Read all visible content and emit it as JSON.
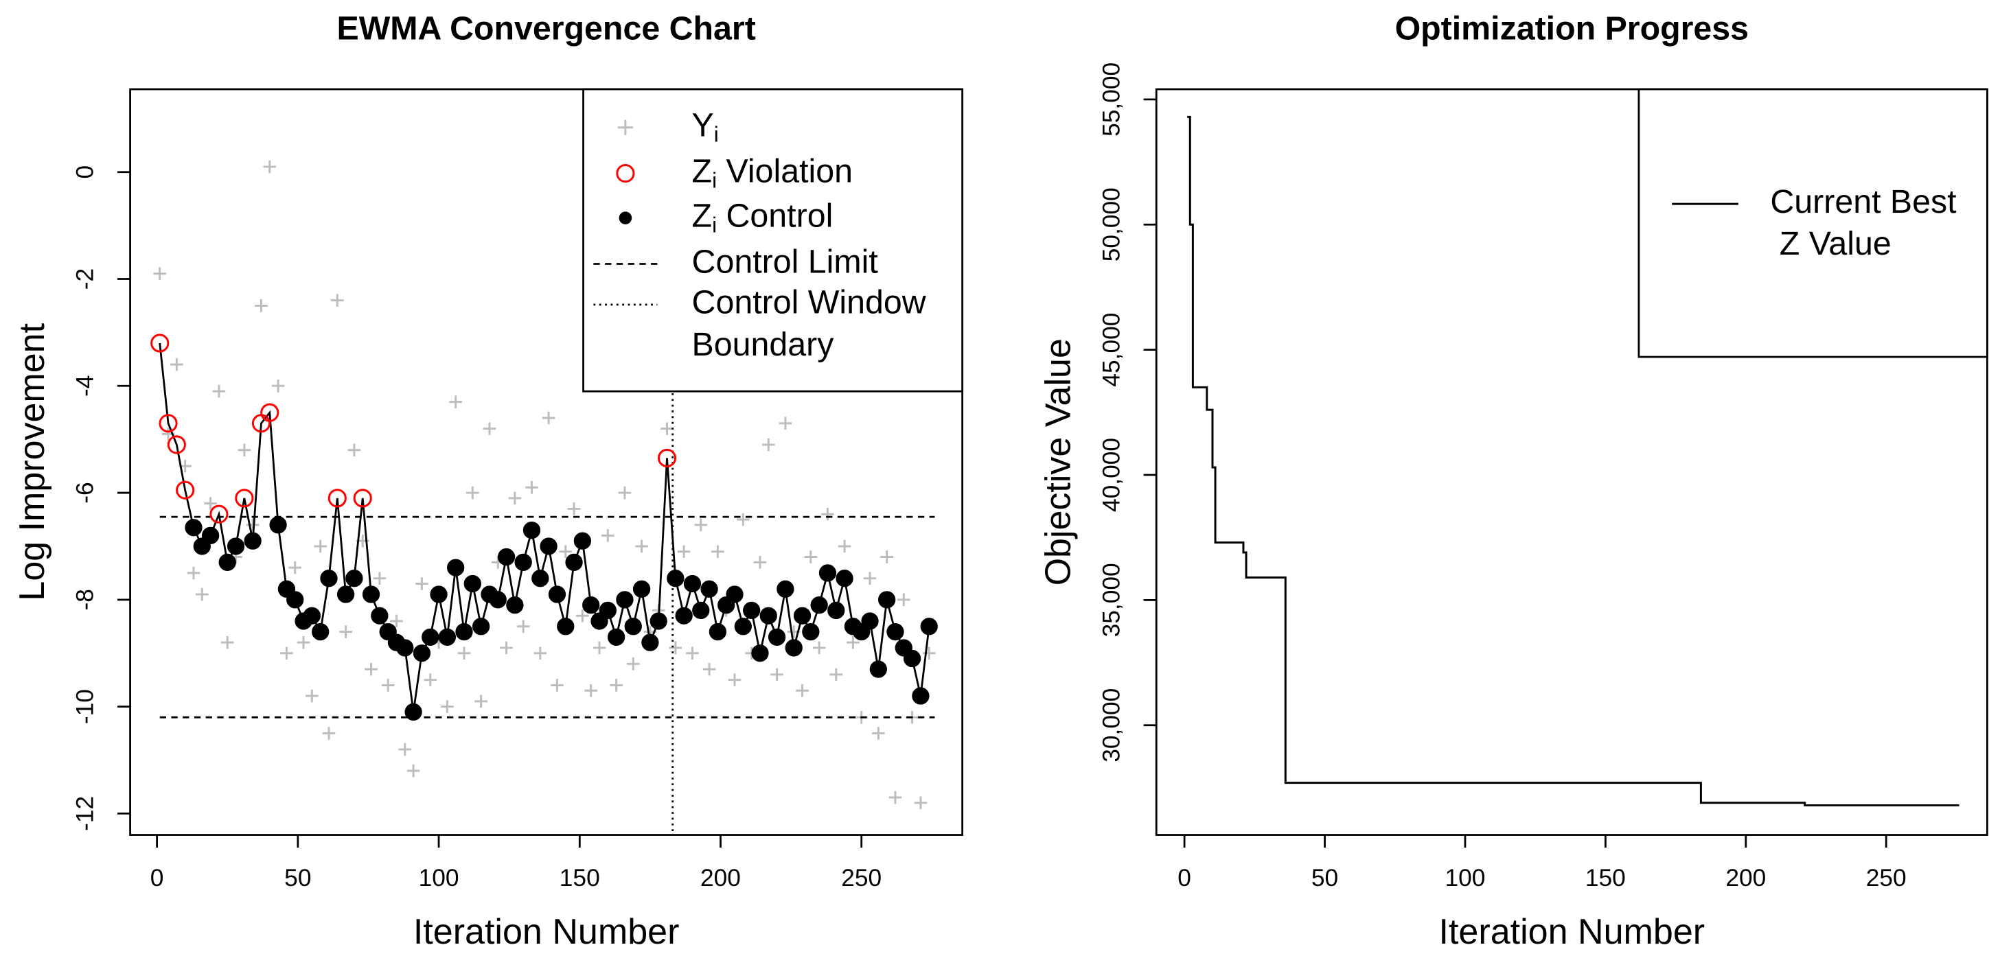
{
  "chart_data": [
    {
      "type": "ewma",
      "title": "EWMA Convergence Chart",
      "xlabel": "Iteration Number",
      "ylabel": "Log Improvement",
      "xlim": [
        -9.5,
        285.8
      ],
      "ylim": [
        -12.4,
        1.55
      ],
      "xticks": [
        0,
        50,
        100,
        150,
        200,
        250
      ],
      "yticks": [
        0,
        -2,
        -4,
        -6,
        -8,
        -10,
        -12
      ],
      "x": [
        1,
        4,
        7,
        10,
        13,
        16,
        19,
        22,
        25,
        28,
        31,
        34,
        37,
        40,
        43,
        46,
        49,
        52,
        55,
        58,
        61,
        64,
        67,
        70,
        73,
        76,
        79,
        82,
        85,
        88,
        91,
        94,
        97,
        100,
        103,
        106,
        109,
        112,
        115,
        118,
        121,
        124,
        127,
        130,
        133,
        136,
        139,
        142,
        145,
        148,
        151,
        154,
        157,
        160,
        163,
        166,
        169,
        172,
        175,
        178,
        181,
        184,
        187,
        190,
        193,
        196,
        199,
        202,
        205,
        208,
        211,
        214,
        217,
        220,
        223,
        226,
        229,
        232,
        235,
        238,
        241,
        244,
        247,
        250,
        253,
        256,
        259,
        262,
        265,
        268,
        271,
        274
      ],
      "observations": {
        "color": "#bdbdbd",
        "values": [
          -1.9,
          -4.9,
          -3.6,
          -5.5,
          -7.5,
          -7.9,
          -6.2,
          -4.1,
          -8.8,
          -7.2,
          -5.2,
          -6.6,
          -2.5,
          0.1,
          -4.0,
          -9.0,
          -7.4,
          -8.8,
          -9.8,
          -7.0,
          -10.5,
          -2.4,
          -8.6,
          -5.2,
          -6.9,
          -9.3,
          -7.6,
          -9.6,
          -8.4,
          -10.8,
          -11.2,
          -7.7,
          -9.5,
          -8.8,
          -10.0,
          -4.3,
          -9.0,
          -6.0,
          -9.9,
          -4.8,
          -7.3,
          -8.9,
          -6.1,
          -8.5,
          -5.9,
          -9.0,
          -4.6,
          -9.6,
          -7.1,
          -6.3,
          -8.3,
          -9.7,
          -8.9,
          -6.8,
          -9.6,
          -6.0,
          -9.2,
          -7.0,
          -8.6,
          -8.2,
          -4.8,
          -8.9,
          -7.1,
          -9.0,
          -6.6,
          -9.3,
          -7.1,
          -8.2,
          -9.5,
          -6.5,
          -9.0,
          -7.3,
          -5.1,
          -9.4,
          -4.7,
          -8.6,
          -9.7,
          -7.2,
          -8.9,
          -6.4,
          -9.4,
          -7.0,
          -8.8,
          -10.2,
          -7.6,
          -10.5,
          -7.2,
          -11.7,
          -8.0,
          -10.2,
          -11.8,
          -9.0
        ]
      },
      "ewma": {
        "color": "#000000",
        "violation_color": "#ff0000",
        "values": [
          -3.2,
          -4.7,
          -5.1,
          -5.95,
          -6.65,
          -7.0,
          -6.8,
          -6.4,
          -7.3,
          -7.0,
          -6.1,
          -6.9,
          -4.7,
          -4.5,
          -6.6,
          -7.8,
          -8.0,
          -8.4,
          -8.3,
          -8.6,
          -7.6,
          -6.1,
          -7.9,
          -7.6,
          -6.1,
          -7.9,
          -8.3,
          -8.6,
          -8.8,
          -8.9,
          -10.1,
          -9.0,
          -8.7,
          -7.9,
          -8.7,
          -7.4,
          -8.6,
          -7.7,
          -8.5,
          -7.9,
          -8.0,
          -7.2,
          -8.1,
          -7.3,
          -6.7,
          -7.6,
          -7.0,
          -7.9,
          -8.5,
          -7.3,
          -6.9,
          -8.1,
          -8.4,
          -8.2,
          -8.7,
          -8.0,
          -8.5,
          -7.8,
          -8.8,
          -8.4,
          -5.35,
          -7.6,
          -8.3,
          -7.7,
          -8.2,
          -7.8,
          -8.6,
          -8.1,
          -7.9,
          -8.5,
          -8.2,
          -9.0,
          -8.3,
          -8.7,
          -7.8,
          -8.9,
          -8.3,
          -8.6,
          -8.1,
          -7.5,
          -8.2,
          -7.6,
          -8.5,
          -8.6,
          -8.4,
          -9.3,
          -8.0,
          -8.6,
          -8.9,
          -9.1,
          -9.8,
          -8.5
        ]
      },
      "control_limit": {
        "upper": -6.45,
        "lower": -10.2,
        "x": [
          1,
          276
        ]
      },
      "window_boundary": 183,
      "legend": [
        {
          "text": "Y",
          "sub": "i",
          "symbol": "plus"
        },
        {
          "text": "Z",
          "sub": "i",
          "rest": " Violation",
          "symbol": "open-circle"
        },
        {
          "text": "Z",
          "sub": "i",
          "rest": " Control",
          "symbol": "dot"
        },
        {
          "text": "Control Limit",
          "symbol": "dashed"
        },
        {
          "lines": [
            "Control Window",
            "Boundary"
          ],
          "symbol": "dotted"
        }
      ]
    },
    {
      "type": "step",
      "title": "Optimization Progress",
      "xlabel": "Iteration Number",
      "ylabel": "Objective Value",
      "xlim": [
        -10,
        286
      ],
      "ylim": [
        25618,
        55407
      ],
      "xticks": [
        0,
        50,
        100,
        150,
        200,
        250
      ],
      "yticks": [
        {
          "value": 30000,
          "label": "30,000"
        },
        {
          "value": 35000,
          "label": "35,000"
        },
        {
          "value": 40000,
          "label": "40,000"
        },
        {
          "value": 45000,
          "label": "45,000"
        },
        {
          "value": 50000,
          "label": "50,000"
        },
        {
          "value": 55000,
          "label": "55,000"
        }
      ],
      "x": [
        1,
        2,
        3,
        8,
        10,
        11,
        21,
        22,
        36,
        184,
        221,
        276
      ],
      "values": [
        54300,
        50000,
        43500,
        42600,
        40300,
        37300,
        36900,
        35900,
        27700,
        26900,
        26800,
        26800
      ],
      "color": "#000000",
      "legend": {
        "lines": [
          "Current Best",
          " Z Value"
        ]
      }
    }
  ]
}
